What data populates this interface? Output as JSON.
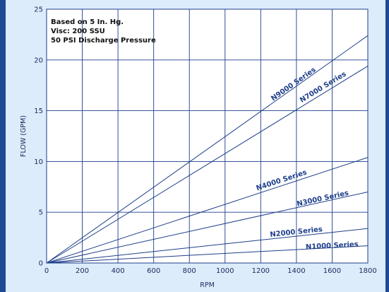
{
  "chart_data": {
    "type": "line",
    "xlabel": "RPM",
    "ylabel": "FLOW (GPM)",
    "xlim": [
      0,
      1800
    ],
    "ylim": [
      0,
      25
    ],
    "x_ticks": [
      0,
      200,
      400,
      600,
      800,
      1000,
      1200,
      1400,
      1600,
      1800
    ],
    "y_ticks": [
      0,
      5,
      10,
      15,
      20,
      25
    ],
    "grid": true,
    "legend": "none",
    "annotations": [
      "Based on 5 In. Hg.",
      "Visc: 200 SSU",
      "50 PSI Discharge Pressure"
    ],
    "series": [
      {
        "name": "N9000 Series",
        "x": [
          0,
          1800
        ],
        "y": [
          0,
          22.4
        ]
      },
      {
        "name": "N7000 Series",
        "x": [
          0,
          1800
        ],
        "y": [
          0,
          19.4
        ]
      },
      {
        "name": "N4000 Series",
        "x": [
          0,
          1800
        ],
        "y": [
          0,
          10.4
        ]
      },
      {
        "name": "N3000 Series",
        "x": [
          0,
          1800
        ],
        "y": [
          0,
          7.0
        ]
      },
      {
        "name": "N2000 Series",
        "x": [
          0,
          1800
        ],
        "y": [
          0,
          3.4
        ]
      },
      {
        "name": "N1000 Series",
        "x": [
          0,
          1800
        ],
        "y": [
          0,
          1.7
        ]
      }
    ],
    "colors": {
      "background": "#ddecfb",
      "plot_background": "#ffffff",
      "line": "#1d3e8a",
      "border": "#1d4a94"
    }
  }
}
